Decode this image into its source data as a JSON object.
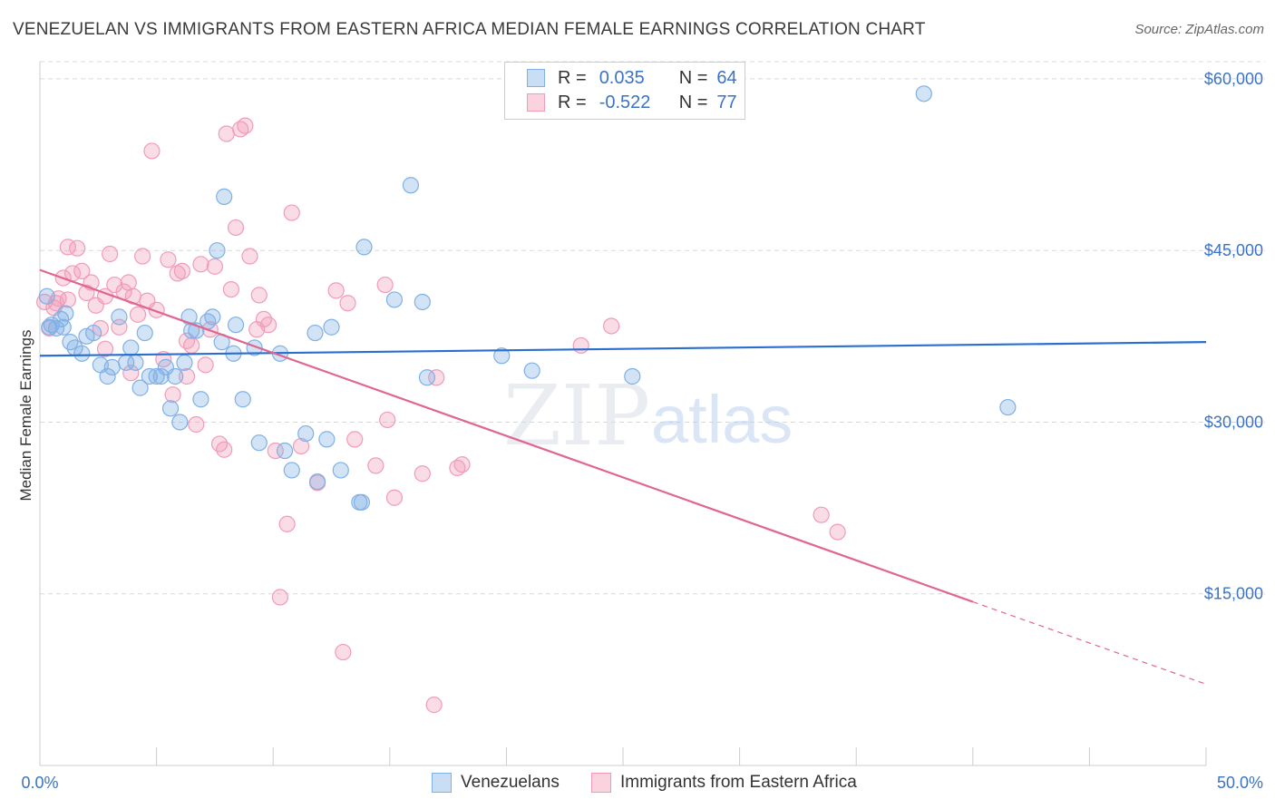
{
  "title": "VENEZUELAN VS IMMIGRANTS FROM EASTERN AFRICA MEDIAN FEMALE EARNINGS CORRELATION CHART",
  "source": "Source: ZipAtlas.com",
  "watermark": {
    "zip": "ZIP",
    "atlas": "atlas"
  },
  "legend": {
    "r_label": "R =",
    "n_label": "N =",
    "series1": {
      "r": "0.035",
      "n": "64"
    },
    "series2": {
      "r": "-0.522",
      "n": "77"
    }
  },
  "bottom_legend": {
    "series1": "Venezuelans",
    "series2": "Immigrants from Eastern Africa"
  },
  "colors": {
    "blue": "#7fb0e6",
    "blue_line": "#2a6fd0",
    "pink": "#f29bb6",
    "pink_line": "#e0668f",
    "grid": "#d8d8d8",
    "tick_text": "#3b73c4"
  },
  "chart_data": {
    "type": "scatter",
    "title": "VENEZUELAN VS IMMIGRANTS FROM EASTERN AFRICA MEDIAN FEMALE EARNINGS CORRELATION CHART",
    "xlabel": "",
    "ylabel": "Median Female Earnings",
    "xlim": [
      0,
      50
    ],
    "ylim": [
      0,
      61500
    ],
    "x_tick_labels": [
      "0.0%",
      "50.0%"
    ],
    "y_ticks": [
      15000,
      30000,
      45000,
      60000
    ],
    "y_tick_labels": [
      "$15,000",
      "$30,000",
      "$45,000",
      "$60,000"
    ],
    "grid": "horizontal dashed",
    "legend_position": "top-center",
    "series": [
      {
        "name": "Venezuelans",
        "color": "#7fb0e6",
        "trend": {
          "x": [
            0,
            50
          ],
          "y": [
            35800,
            37000
          ]
        },
        "points": [
          [
            0.3,
            41000
          ],
          [
            0.5,
            38500
          ],
          [
            0.7,
            38200
          ],
          [
            0.9,
            39000
          ],
          [
            1.1,
            39500
          ],
          [
            1.3,
            37000
          ],
          [
            1.5,
            36500
          ],
          [
            1.8,
            36000
          ],
          [
            2.0,
            37500
          ],
          [
            2.3,
            37800
          ],
          [
            2.6,
            35000
          ],
          [
            2.9,
            34000
          ],
          [
            3.1,
            34800
          ],
          [
            3.4,
            39200
          ],
          [
            3.7,
            35200
          ],
          [
            3.9,
            36500
          ],
          [
            4.1,
            35200
          ],
          [
            4.3,
            33000
          ],
          [
            4.5,
            37800
          ],
          [
            4.7,
            34000
          ],
          [
            5.0,
            34000
          ],
          [
            5.2,
            34000
          ],
          [
            5.4,
            34800
          ],
          [
            5.6,
            31200
          ],
          [
            5.8,
            34000
          ],
          [
            6.0,
            30000
          ],
          [
            6.2,
            35200
          ],
          [
            6.4,
            39200
          ],
          [
            6.5,
            38000
          ],
          [
            6.7,
            38000
          ],
          [
            6.9,
            32000
          ],
          [
            7.2,
            38800
          ],
          [
            7.4,
            39200
          ],
          [
            7.6,
            45000
          ],
          [
            7.8,
            37000
          ],
          [
            7.9,
            49700
          ],
          [
            8.3,
            36000
          ],
          [
            8.4,
            38500
          ],
          [
            8.7,
            32000
          ],
          [
            9.2,
            36500
          ],
          [
            9.4,
            28200
          ],
          [
            10.3,
            36000
          ],
          [
            10.5,
            27500
          ],
          [
            10.8,
            25800
          ],
          [
            11.4,
            29000
          ],
          [
            11.8,
            37800
          ],
          [
            12.3,
            28500
          ],
          [
            12.5,
            38300
          ],
          [
            12.9,
            25800
          ],
          [
            13.7,
            23000
          ],
          [
            13.9,
            45300
          ],
          [
            15.2,
            40700
          ],
          [
            15.9,
            50700
          ],
          [
            16.4,
            40500
          ],
          [
            16.6,
            33900
          ],
          [
            19.8,
            35800
          ],
          [
            21.1,
            34500
          ],
          [
            25.4,
            34000
          ],
          [
            37.9,
            58700
          ],
          [
            41.5,
            31300
          ],
          [
            0.4,
            38300
          ],
          [
            1.0,
            38300
          ],
          [
            11.9,
            24800
          ],
          [
            13.8,
            23000
          ]
        ]
      },
      {
        "name": "Immigrants from Eastern Africa",
        "color": "#f29bb6",
        "trend": {
          "x": [
            0,
            40
          ],
          "y": [
            43300,
            14300
          ]
        },
        "trend_dashed": {
          "x": [
            40,
            50
          ],
          "y": [
            14300,
            7100
          ]
        },
        "points": [
          [
            0.2,
            40500
          ],
          [
            0.4,
            38200
          ],
          [
            0.6,
            40000
          ],
          [
            0.8,
            40800
          ],
          [
            1.0,
            42600
          ],
          [
            1.2,
            45300
          ],
          [
            1.4,
            43000
          ],
          [
            1.6,
            45200
          ],
          [
            1.8,
            43200
          ],
          [
            2.0,
            41300
          ],
          [
            2.2,
            42200
          ],
          [
            2.4,
            40200
          ],
          [
            2.6,
            38200
          ],
          [
            2.8,
            41000
          ],
          [
            3.0,
            44700
          ],
          [
            3.2,
            42000
          ],
          [
            3.4,
            38300
          ],
          [
            3.6,
            41400
          ],
          [
            3.8,
            42200
          ],
          [
            4.0,
            41000
          ],
          [
            4.2,
            39400
          ],
          [
            4.4,
            44500
          ],
          [
            4.6,
            40600
          ],
          [
            4.8,
            53700
          ],
          [
            5.0,
            39800
          ],
          [
            5.3,
            35500
          ],
          [
            5.5,
            44200
          ],
          [
            5.7,
            32400
          ],
          [
            5.9,
            43000
          ],
          [
            6.1,
            43200
          ],
          [
            6.3,
            34000
          ],
          [
            6.5,
            36700
          ],
          [
            6.7,
            29800
          ],
          [
            6.9,
            43800
          ],
          [
            7.1,
            35000
          ],
          [
            7.3,
            38100
          ],
          [
            7.5,
            43600
          ],
          [
            7.7,
            28100
          ],
          [
            7.9,
            27600
          ],
          [
            8.0,
            55200
          ],
          [
            8.2,
            41600
          ],
          [
            8.4,
            47000
          ],
          [
            8.6,
            55600
          ],
          [
            8.8,
            55900
          ],
          [
            9.0,
            44500
          ],
          [
            9.4,
            41100
          ],
          [
            9.6,
            39000
          ],
          [
            9.8,
            38500
          ],
          [
            10.1,
            27500
          ],
          [
            10.3,
            14700
          ],
          [
            10.6,
            21100
          ],
          [
            10.8,
            48300
          ],
          [
            11.2,
            27900
          ],
          [
            11.9,
            24700
          ],
          [
            12.7,
            41500
          ],
          [
            13.0,
            9900
          ],
          [
            13.2,
            40400
          ],
          [
            13.5,
            28500
          ],
          [
            14.4,
            26200
          ],
          [
            14.8,
            42000
          ],
          [
            14.9,
            30200
          ],
          [
            15.2,
            23400
          ],
          [
            16.4,
            25500
          ],
          [
            16.9,
            5300
          ],
          [
            17.0,
            33900
          ],
          [
            17.9,
            26000
          ],
          [
            18.1,
            26300
          ],
          [
            23.2,
            36700
          ],
          [
            24.5,
            38400
          ],
          [
            33.5,
            21900
          ],
          [
            34.2,
            20400
          ],
          [
            1.2,
            40700
          ],
          [
            2.8,
            36400
          ],
          [
            3.9,
            34300
          ],
          [
            6.3,
            37100
          ],
          [
            9.3,
            38100
          ],
          [
            0.7,
            40400
          ]
        ]
      }
    ]
  }
}
